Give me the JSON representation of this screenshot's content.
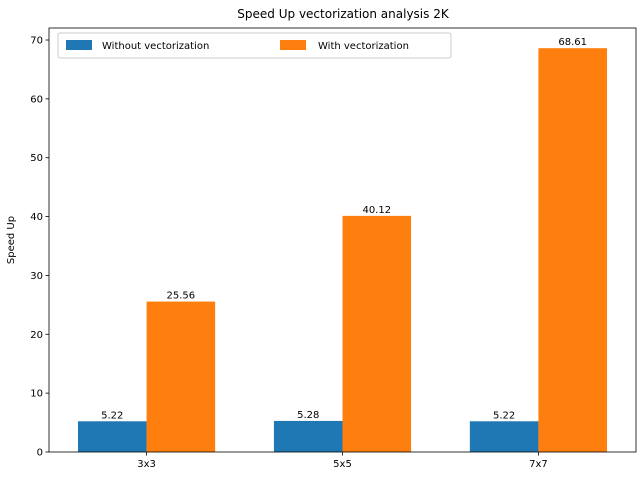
{
  "chart_data": {
    "type": "bar",
    "title": "Speed Up vectorization analysis 2K",
    "xlabel": "",
    "ylabel": "Speed Up",
    "categories": [
      "3x3",
      "5x5",
      "7x7"
    ],
    "series": [
      {
        "name": "Without vectorization",
        "values": [
          5.22,
          5.28,
          5.22
        ],
        "labels": [
          "5.22",
          "5.28",
          "5.22"
        ],
        "color": "#1f77b4"
      },
      {
        "name": "With vectorization",
        "values": [
          25.56,
          40.12,
          68.61
        ],
        "labels": [
          "25.56",
          "40.12",
          "68.61"
        ],
        "color": "#ff7f0e"
      }
    ],
    "yticks": [
      0,
      10,
      20,
      30,
      40,
      50,
      60,
      70
    ],
    "ylim": [
      0,
      72.04
    ],
    "legend": "upper-left",
    "grid": false
  }
}
